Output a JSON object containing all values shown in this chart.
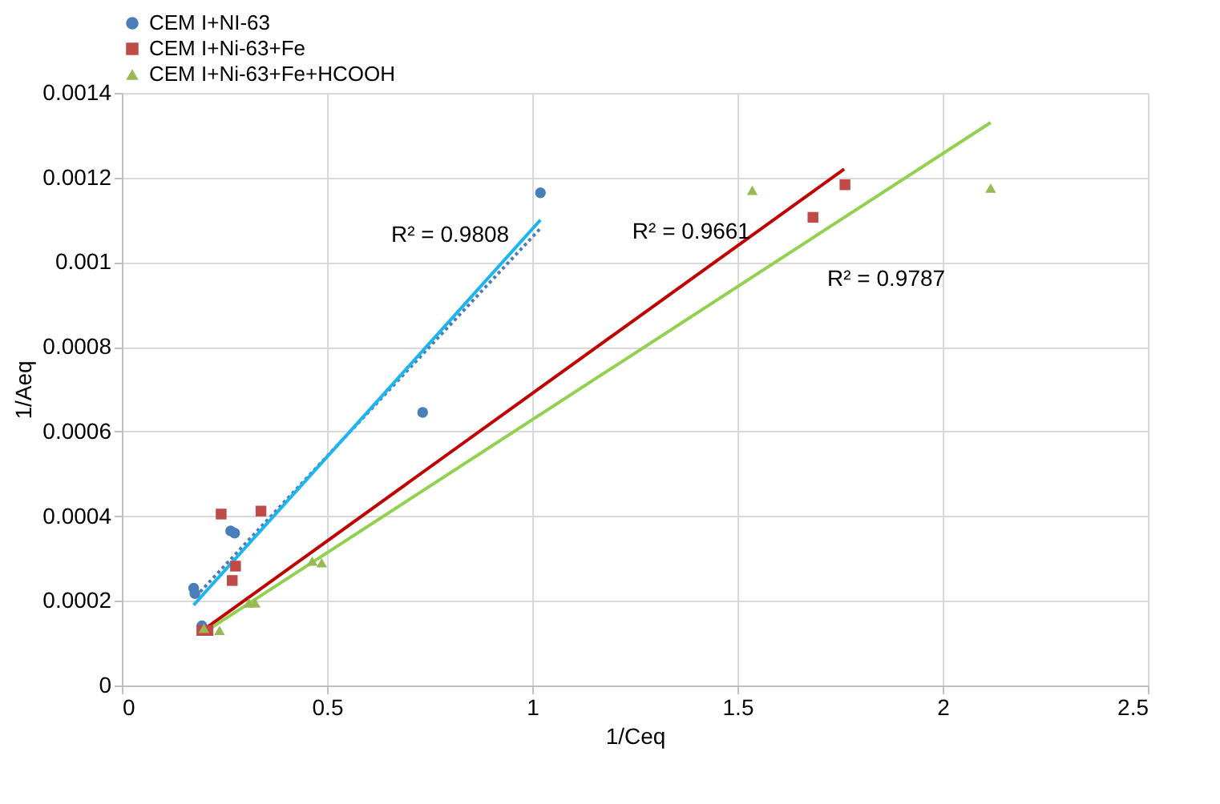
{
  "chart_data": {
    "type": "scatter",
    "xlabel": "1/Ceq",
    "ylabel": "1/Aeq",
    "xlim": [
      0,
      2.5
    ],
    "xticks": [
      0,
      0.5,
      1,
      1.5,
      2,
      2.5
    ],
    "ylim": [
      0,
      0.0014
    ],
    "yticks": [
      0,
      0.0002,
      0.0004,
      0.0006,
      0.0008,
      0.001,
      0.0012,
      0.0014
    ],
    "grid": true,
    "legend": "top",
    "series": [
      {
        "name": "CEM I+NI-63",
        "marker": "circle",
        "color": "#4a7ebb",
        "x": [
          0.175,
          0.178,
          0.195,
          0.265,
          0.275,
          0.733,
          1.02
        ],
        "values": [
          0.00023,
          0.000217,
          0.000141,
          0.000365,
          0.00036,
          0.000645,
          0.001164
        ]
      },
      {
        "name": "CEM I+Ni-63+Fe",
        "marker": "square",
        "color": "#be4b48",
        "x": [
          0.195,
          0.21,
          0.242,
          0.269,
          0.277,
          0.339,
          1.684,
          1.762
        ],
        "values": [
          0.00013,
          0.00013,
          0.000405,
          0.000248,
          0.000282,
          0.000412,
          0.001106,
          0.001183
        ]
      },
      {
        "name": "CEM I+Ni-63+Fe+HCOOH",
        "marker": "triangle",
        "color": "#98b954",
        "x": [
          0.2,
          0.238,
          0.31,
          0.325,
          0.464,
          0.487,
          1.536,
          2.117
        ],
        "values": [
          0.000135,
          0.00013,
          0.000195,
          0.000195,
          0.000294,
          0.00029,
          0.00117,
          0.001175
        ]
      },
      {
        "type": "line",
        "line_style": "dotted",
        "color": "#4a7ebb",
        "x": [
          0.18,
          1.02
        ],
        "values": [
          0.00021,
          0.00108
        ]
      },
      {
        "type": "line",
        "line_style": "solid",
        "color": "#1eb4f0",
        "x": [
          0.175,
          1.02
        ],
        "values": [
          0.00019,
          0.0011
        ]
      },
      {
        "type": "line",
        "line_style": "solid",
        "color": "#c00000",
        "x": [
          0.19,
          1.76
        ],
        "values": [
          0.000125,
          0.00122
        ]
      },
      {
        "type": "line",
        "line_style": "solid",
        "color": "#92d050",
        "x": [
          0.2,
          2.117
        ],
        "values": [
          0.000125,
          0.00133
        ]
      }
    ],
    "annotations": [
      "R² = 0.9808",
      "R² = 0.9661",
      "R² = 0.9787"
    ]
  }
}
